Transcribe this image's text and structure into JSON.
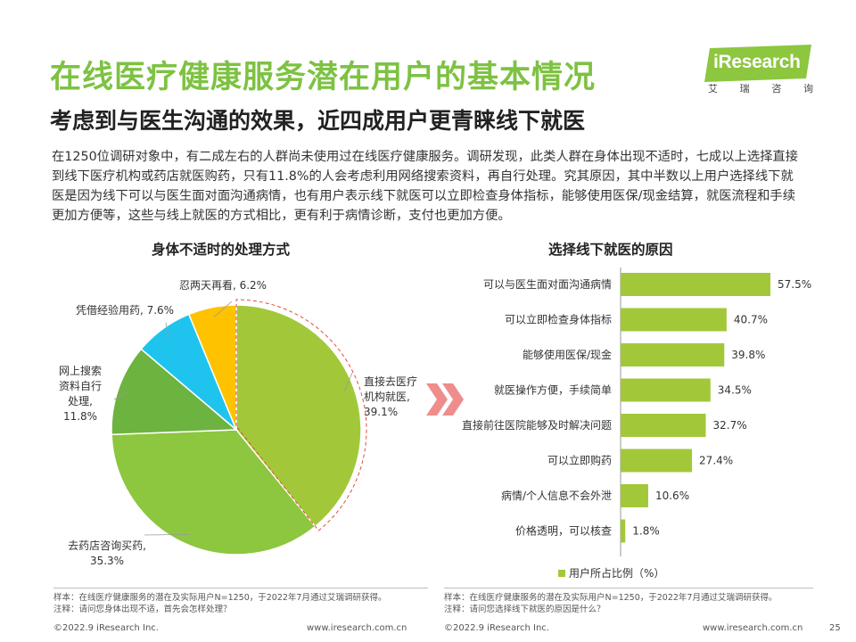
{
  "header": {
    "title": "在线医疗健康服务潜在用户的基本情况",
    "subtitle": "考虑到与医生沟通的效果，近四成用户更青睐线下就医",
    "logo_text": "iResearch",
    "logo_chars": [
      "艾",
      "瑞",
      "咨",
      "询"
    ]
  },
  "intro": "在1250位调研对象中，有二成左右的人群尚未使用过在线医疗健康服务。调研发现，此类人群在身体出现不适时，七成以上选择直接到线下医疗机构或药店就医购药，只有11.8%的人会考虑利用网络搜索资料，再自行处理。究其原因，其中半数以上用户选择线下就医是因为线下可以与医生面对面沟通病情，也有用户表示线下就医可以立即检查身体指标，能够使用医保/现金结算，就医流程和手续更加方便等，这些与线上就医的方式相比，更有利于病情诊断，支付也更加方便。",
  "chart_data": [
    {
      "type": "pie",
      "title": "身体不适时的处理方式",
      "unit": "%",
      "slices": [
        {
          "label": "直接去医疗机构就医",
          "value": 39.1,
          "label_text": "直接去医疗\n机构就医,\n39.1%",
          "color": "#a2c83a"
        },
        {
          "label": "去药店咨询买药",
          "value": 35.3,
          "label_text": "去药店咨询买药,\n35.3%",
          "color": "#8dc63f"
        },
        {
          "label": "网上搜索资料自行处理",
          "value": 11.8,
          "label_text": "网上搜索\n资料自行\n处理,\n11.8%",
          "color": "#6db33f"
        },
        {
          "label": "凭借经验用药",
          "value": 7.6,
          "label_text": "凭借经验用药, 7.6%",
          "color": "#1fc4ee"
        },
        {
          "label": "忍两天再看",
          "value": 6.2,
          "label_text": "忍两天再看, 6.2%",
          "color": "#fec200"
        }
      ]
    },
    {
      "type": "bar",
      "orientation": "horizontal",
      "title": "选择线下就医的原因",
      "legend": "用户所占比例（%）",
      "legend_position": "bottom",
      "color": "#a2c83a",
      "xlim": [
        0,
        60
      ],
      "categories": [
        "可以与医生面对面沟通病情",
        "可以立即检查身体指标",
        "能够使用医保/现金",
        "就医操作方便，手续简单",
        "直接前往医院能够及时解决问题",
        "可以立即购药",
        "病情/个人信息不会外泄",
        "价格透明，可以核查"
      ],
      "values": [
        57.5,
        40.7,
        39.8,
        34.5,
        32.7,
        27.4,
        10.6,
        1.8
      ],
      "value_labels": [
        "57.5%",
        "40.7%",
        "39.8%",
        "34.5%",
        "32.7%",
        "27.4%",
        "10.6%",
        "1.8%"
      ]
    }
  ],
  "notes": {
    "left": [
      "样本：在线医疗健康服务的潜在及实际用户N=1250，于2022年7月通过艾瑞调研获得。",
      "注释：请问您身体出现不适，首先会怎样处理？"
    ],
    "right": [
      "样本：在线医疗健康服务的潜在及实际用户N=1250，于2022年7月通过艾瑞调研获得。",
      "注释：请问您选择线下就医的原因是什么？"
    ]
  },
  "footer": {
    "left_copyright": "©2022.9 iResearch Inc.",
    "left_url": "www.iresearch.com.cn",
    "right_copyright": "©2022.9 iResearch Inc.",
    "right_url": "www.iresearch.com.cn",
    "page_number": "25"
  },
  "colors": {
    "title_green": "#7dc242",
    "arrow_pink": "#ef8c8c",
    "dashed_red": "#e74c3c"
  }
}
